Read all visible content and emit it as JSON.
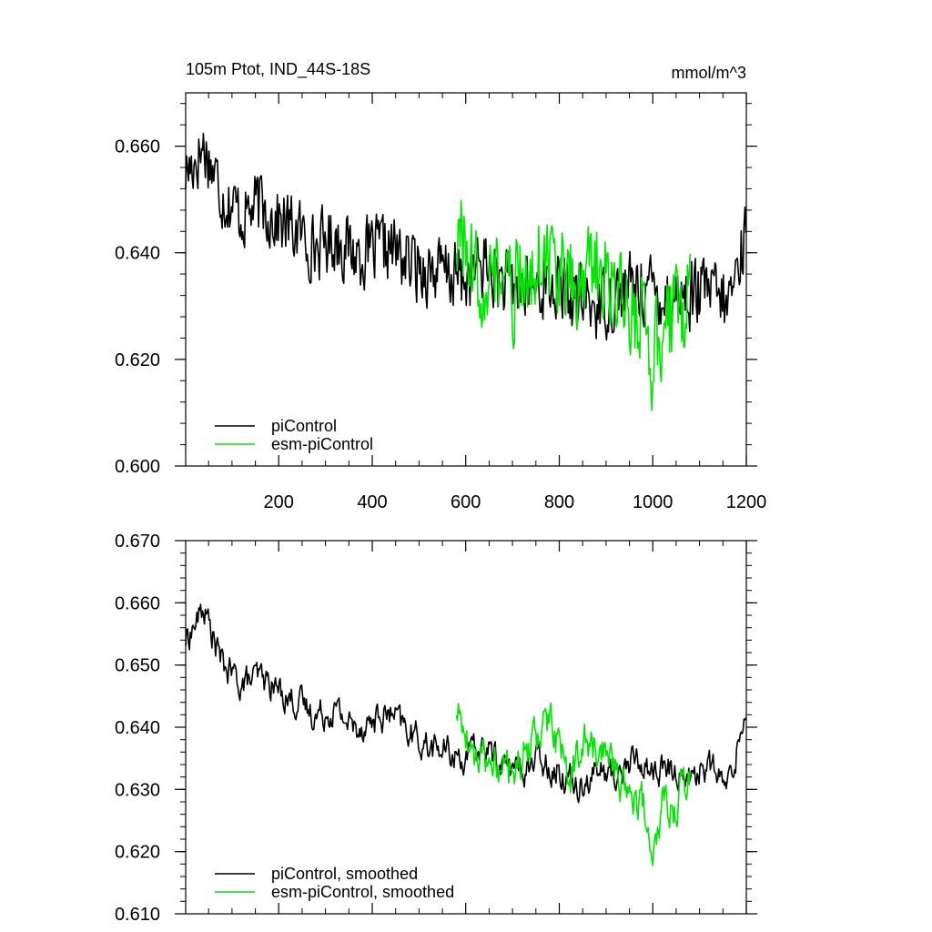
{
  "figure": {
    "title_left": "105m Ptot, IND_44S-18S",
    "title_right": "mmol/m^3"
  },
  "colors": {
    "piControl": "#000000",
    "esm_piControl": "#00e600"
  },
  "chart_data": [
    {
      "type": "line",
      "title": "105m Ptot, IND_44S-18S",
      "units": "mmol/m^3",
      "xlim": [
        1,
        1200
      ],
      "ylim": [
        0.6,
        0.67
      ],
      "xticks": [
        200,
        400,
        600,
        800,
        1000,
        1200
      ],
      "xtick_labels": [
        "200",
        "400",
        "600",
        "800",
        "1000",
        "1200"
      ],
      "yticks": [
        0.6,
        0.62,
        0.64,
        0.66
      ],
      "ytick_labels": [
        "0.600",
        "0.620",
        "0.640",
        "0.660"
      ],
      "legend": [
        "piControl",
        "esm-piControl"
      ],
      "legend_position": "bottom-left",
      "series": [
        {
          "name": "piControl",
          "color": "#000000",
          "x": [
            1,
            40,
            80,
            120,
            160,
            200,
            240,
            280,
            320,
            360,
            400,
            440,
            480,
            520,
            560,
            600,
            640,
            680,
            720,
            760,
            800,
            840,
            880,
            920,
            960,
            1000,
            1040,
            1080,
            1120,
            1160,
            1200
          ],
          "y": [
            0.655,
            0.66,
            0.651,
            0.647,
            0.649,
            0.646,
            0.644,
            0.641,
            0.643,
            0.64,
            0.64,
            0.641,
            0.638,
            0.637,
            0.636,
            0.635,
            0.638,
            0.634,
            0.633,
            0.634,
            0.633,
            0.631,
            0.63,
            0.632,
            0.634,
            0.633,
            0.632,
            0.632,
            0.633,
            0.63,
            0.644
          ],
          "amplitude": 0.0085
        },
        {
          "name": "esm-piControl",
          "color": "#00e600",
          "x": [
            580,
            620,
            660,
            700,
            740,
            780,
            820,
            860,
            900,
            940,
            980,
            1000,
            1020,
            1040,
            1080
          ],
          "y": [
            0.644,
            0.635,
            0.636,
            0.632,
            0.638,
            0.64,
            0.633,
            0.637,
            0.636,
            0.63,
            0.626,
            0.62,
            0.626,
            0.628,
            0.632
          ],
          "amplitude": 0.012
        }
      ]
    },
    {
      "type": "line",
      "title": "",
      "units": "",
      "xlim": [
        1,
        1200
      ],
      "ylim": [
        0.61,
        0.67
      ],
      "xticks": [
        200,
        400,
        600,
        800,
        1000,
        1200
      ],
      "xtick_labels": [],
      "yticks": [
        0.61,
        0.62,
        0.63,
        0.64,
        0.65,
        0.66,
        0.67
      ],
      "ytick_labels": [
        "0.610",
        "0.620",
        "0.630",
        "0.640",
        "0.650",
        "0.660",
        "0.670"
      ],
      "legend": [
        "piControl, smoothed",
        "esm-piControl, smoothed"
      ],
      "legend_position": "bottom-left",
      "series": [
        {
          "name": "piControl, smoothed",
          "color": "#000000",
          "x": [
            1,
            40,
            80,
            120,
            160,
            200,
            240,
            280,
            320,
            360,
            400,
            440,
            480,
            520,
            560,
            600,
            640,
            680,
            720,
            760,
            800,
            840,
            880,
            920,
            960,
            1000,
            1040,
            1080,
            1120,
            1160,
            1200
          ],
          "y": [
            0.654,
            0.659,
            0.65,
            0.647,
            0.648,
            0.646,
            0.644,
            0.642,
            0.643,
            0.64,
            0.641,
            0.642,
            0.639,
            0.637,
            0.636,
            0.635,
            0.637,
            0.634,
            0.633,
            0.635,
            0.633,
            0.631,
            0.633,
            0.632,
            0.635,
            0.633,
            0.633,
            0.632,
            0.634,
            0.63,
            0.643
          ],
          "amplitude": 0.0045
        },
        {
          "name": "esm-piControl, smoothed",
          "color": "#00e600",
          "x": [
            580,
            620,
            660,
            700,
            740,
            780,
            820,
            860,
            900,
            940,
            980,
            1000,
            1020,
            1040,
            1080
          ],
          "y": [
            0.643,
            0.635,
            0.634,
            0.633,
            0.637,
            0.641,
            0.632,
            0.638,
            0.636,
            0.631,
            0.628,
            0.617,
            0.627,
            0.626,
            0.632
          ],
          "amplitude": 0.006
        }
      ]
    }
  ]
}
